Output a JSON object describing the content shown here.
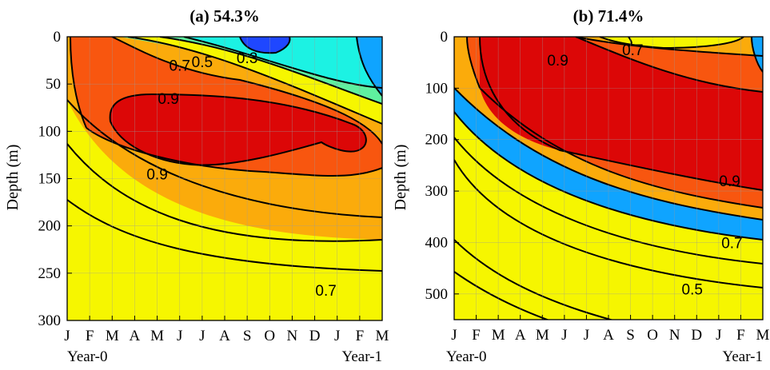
{
  "chart_data": [
    {
      "type": "heatmap",
      "title": "(a) 54.3%",
      "ylabel": "Depth (m)",
      "x_ticks": [
        "J",
        "F",
        "M",
        "A",
        "M",
        "J",
        "J",
        "A",
        "S",
        "O",
        "N",
        "D",
        "J",
        "F",
        "M"
      ],
      "y_ticks": [
        "0",
        "50",
        "100",
        "150",
        "200",
        "250",
        "300"
      ],
      "ylim": [
        0,
        300
      ],
      "y_reversed": true,
      "year_labels": [
        "Year-0",
        "Year-1"
      ],
      "contour_labels": [
        {
          "text": "0.3",
          "month": 8.0,
          "depth": 22
        },
        {
          "text": "0.5",
          "month": 6.0,
          "depth": 26
        },
        {
          "text": "0.7",
          "month": 5.0,
          "depth": 30
        },
        {
          "text": "0.9",
          "month": 4.5,
          "depth": 65
        },
        {
          "text": "0.9",
          "month": 4.0,
          "depth": 145
        },
        {
          "text": "0.7",
          "month": 11.5,
          "depth": 268
        }
      ],
      "grid": true
    },
    {
      "type": "heatmap",
      "title": "(b) 71.4%",
      "ylabel": "Depth (m)",
      "x_ticks": [
        "J",
        "F",
        "M",
        "A",
        "M",
        "J",
        "J",
        "A",
        "S",
        "O",
        "N",
        "D",
        "J",
        "F",
        "M"
      ],
      "y_ticks": [
        "0",
        "100",
        "200",
        "300",
        "400",
        "500"
      ],
      "ylim": [
        0,
        550
      ],
      "y_reversed": true,
      "year_labels": [
        "Year-0",
        "Year-1"
      ],
      "contour_labels": [
        {
          "text": "0.7",
          "month": 8.1,
          "depth": 25
        },
        {
          "text": "0.9",
          "month": 4.7,
          "depth": 45
        },
        {
          "text": "0.9",
          "month": 12.5,
          "depth": 280
        },
        {
          "text": "0.7",
          "month": 12.6,
          "depth": 400
        },
        {
          "text": "0.5",
          "month": 10.8,
          "depth": 490
        }
      ],
      "grid": true
    }
  ],
  "colors": {
    "c_deepblue": "#1f47ff",
    "c_blue": "#0fa4ff",
    "c_cyan": "#1cf2e3",
    "c_green": "#5ff09f",
    "c_yellowgreen": "#c6f746",
    "c_yellow": "#f6f600",
    "c_orange": "#fbab0b",
    "c_redorange": "#f8560f",
    "c_red": "#dc0707"
  }
}
